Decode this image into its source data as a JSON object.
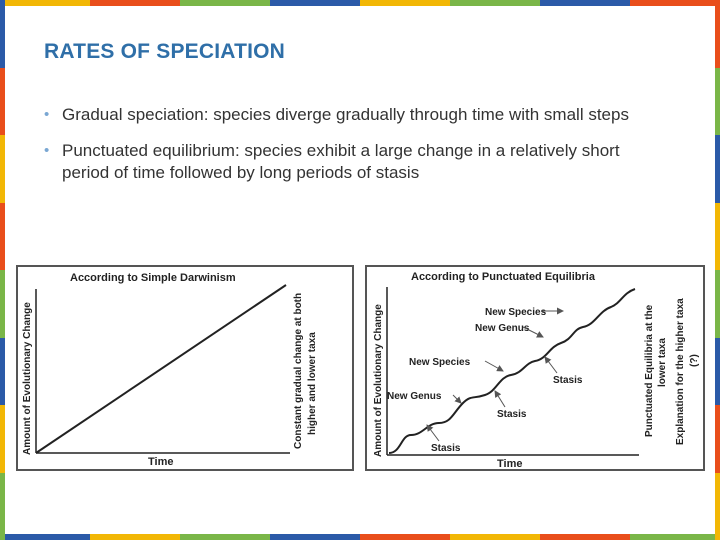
{
  "slide": {
    "title": "RATES OF SPECIATION",
    "bullets": [
      "Gradual speciation: species diverge gradually through time with small steps",
      "Punctuated equilibrium: species exhibit a large change in a relatively short period of time followed by long periods of stasis"
    ]
  },
  "border_colors": [
    "#f2b705",
    "#e94e1b",
    "#7ab648",
    "#2b5aa8",
    "#f2b705",
    "#7ab648",
    "#2b5aa8",
    "#e94e1b"
  ],
  "left_diagram": {
    "title": "According to Simple Darwinism",
    "y_axis_label": "Amount of Evolutionary Change",
    "x_axis_label": "Time",
    "side_label_line1": "Constant gradual change at both",
    "side_label_line2": "higher and lower taxa"
  },
  "right_diagram": {
    "title": "According to Punctuated Equilibria",
    "y_axis_label": "Amount of Evolutionary Change",
    "x_axis_label": "Time",
    "side_label_line1": "Punctuated Equilibria at the",
    "side_label_line2": "lower taxa",
    "side_label_line3": "Explanation for the higher taxa",
    "side_label_line4": "(?)",
    "annotations": {
      "new_species_top": "New Species",
      "new_genus_top": "New Genus",
      "new_species_mid": "New Species",
      "new_genus_low": "New Genus",
      "stasis_right": "Stasis",
      "stasis_mid": "Stasis",
      "stasis_bottom": "Stasis"
    }
  }
}
